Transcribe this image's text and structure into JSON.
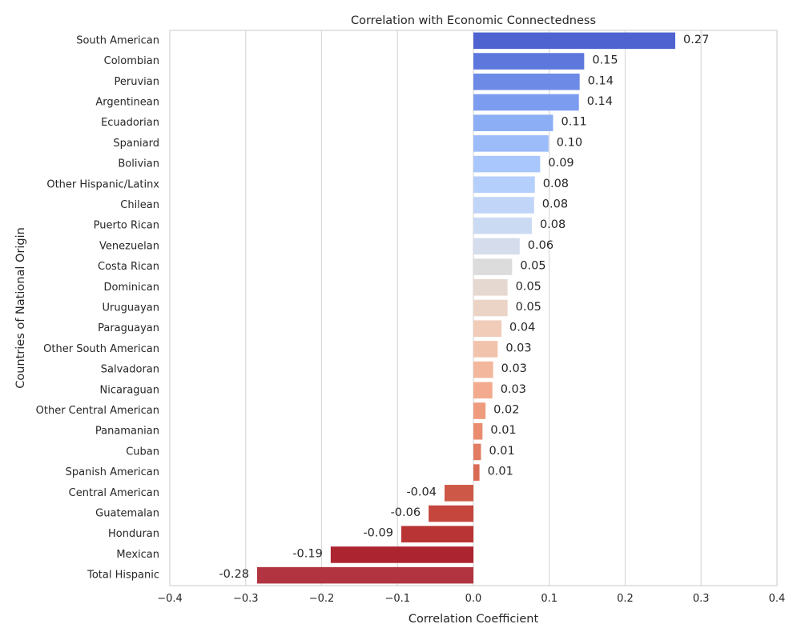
{
  "chart_data": {
    "type": "bar",
    "orientation": "horizontal",
    "title": "Correlation with Economic Connectedness",
    "xlabel": "Correlation Coefficient",
    "ylabel": "Countries of National Origin",
    "xlim": [
      -0.4,
      0.4
    ],
    "xticks": [
      "−0.4",
      "−0.3",
      "−0.2",
      "−0.1",
      "0.0",
      "0.1",
      "0.2",
      "0.3",
      "0.4"
    ],
    "grid": true,
    "palette": "coolwarm",
    "categories": [
      "South American",
      "Colombian",
      "Peruvian",
      "Argentinean",
      "Ecuadorian",
      "Spaniard",
      "Bolivian",
      "Other Hispanic/Latinx",
      "Chilean",
      "Puerto Rican",
      "Venezuelan",
      "Costa Rican",
      "Dominican",
      "Uruguayan",
      "Paraguayan",
      "Other South American",
      "Salvadoran",
      "Nicaraguan",
      "Other Central American",
      "Panamanian",
      "Cuban",
      "Spanish American",
      "Central American",
      "Guatemalan",
      "Honduran",
      "Mexican",
      "Total Hispanic"
    ],
    "values": [
      0.266,
      0.146,
      0.14,
      0.139,
      0.105,
      0.099,
      0.088,
      0.081,
      0.08,
      0.077,
      0.061,
      0.051,
      0.045,
      0.045,
      0.037,
      0.032,
      0.026,
      0.025,
      0.016,
      0.012,
      0.01,
      0.008,
      -0.038,
      -0.059,
      -0.095,
      -0.188,
      -0.285
    ],
    "value_labels": [
      "0.27",
      "0.15",
      "0.14",
      "0.14",
      "0.11",
      "0.10",
      "0.09",
      "0.08",
      "0.08",
      "0.08",
      "0.06",
      "0.05",
      "0.05",
      "0.05",
      "0.04",
      "0.03",
      "0.03",
      "0.03",
      "0.02",
      "0.01",
      "0.01",
      "0.01",
      "-0.04",
      "-0.06",
      "-0.09",
      "-0.19",
      "-0.28"
    ],
    "colors": [
      "#4e63d0",
      "#5d77dd",
      "#6d8ae6",
      "#7c9cef",
      "#8baef5",
      "#9bbcf9",
      "#aac7fd",
      "#b5cffd",
      "#c1d5f9",
      "#cbdaf3",
      "#d5dceb",
      "#dddcdc",
      "#e5d8d1",
      "#ebd3c6",
      "#f0ccb9",
      "#f2c3ac",
      "#f3b79d",
      "#f3aa8e",
      "#ef9b7e",
      "#ea8c6f",
      "#e27c62",
      "#d96a54",
      "#ce5847",
      "#c4463d",
      "#b93434",
      "#ad2431",
      "#b13440"
    ]
  }
}
